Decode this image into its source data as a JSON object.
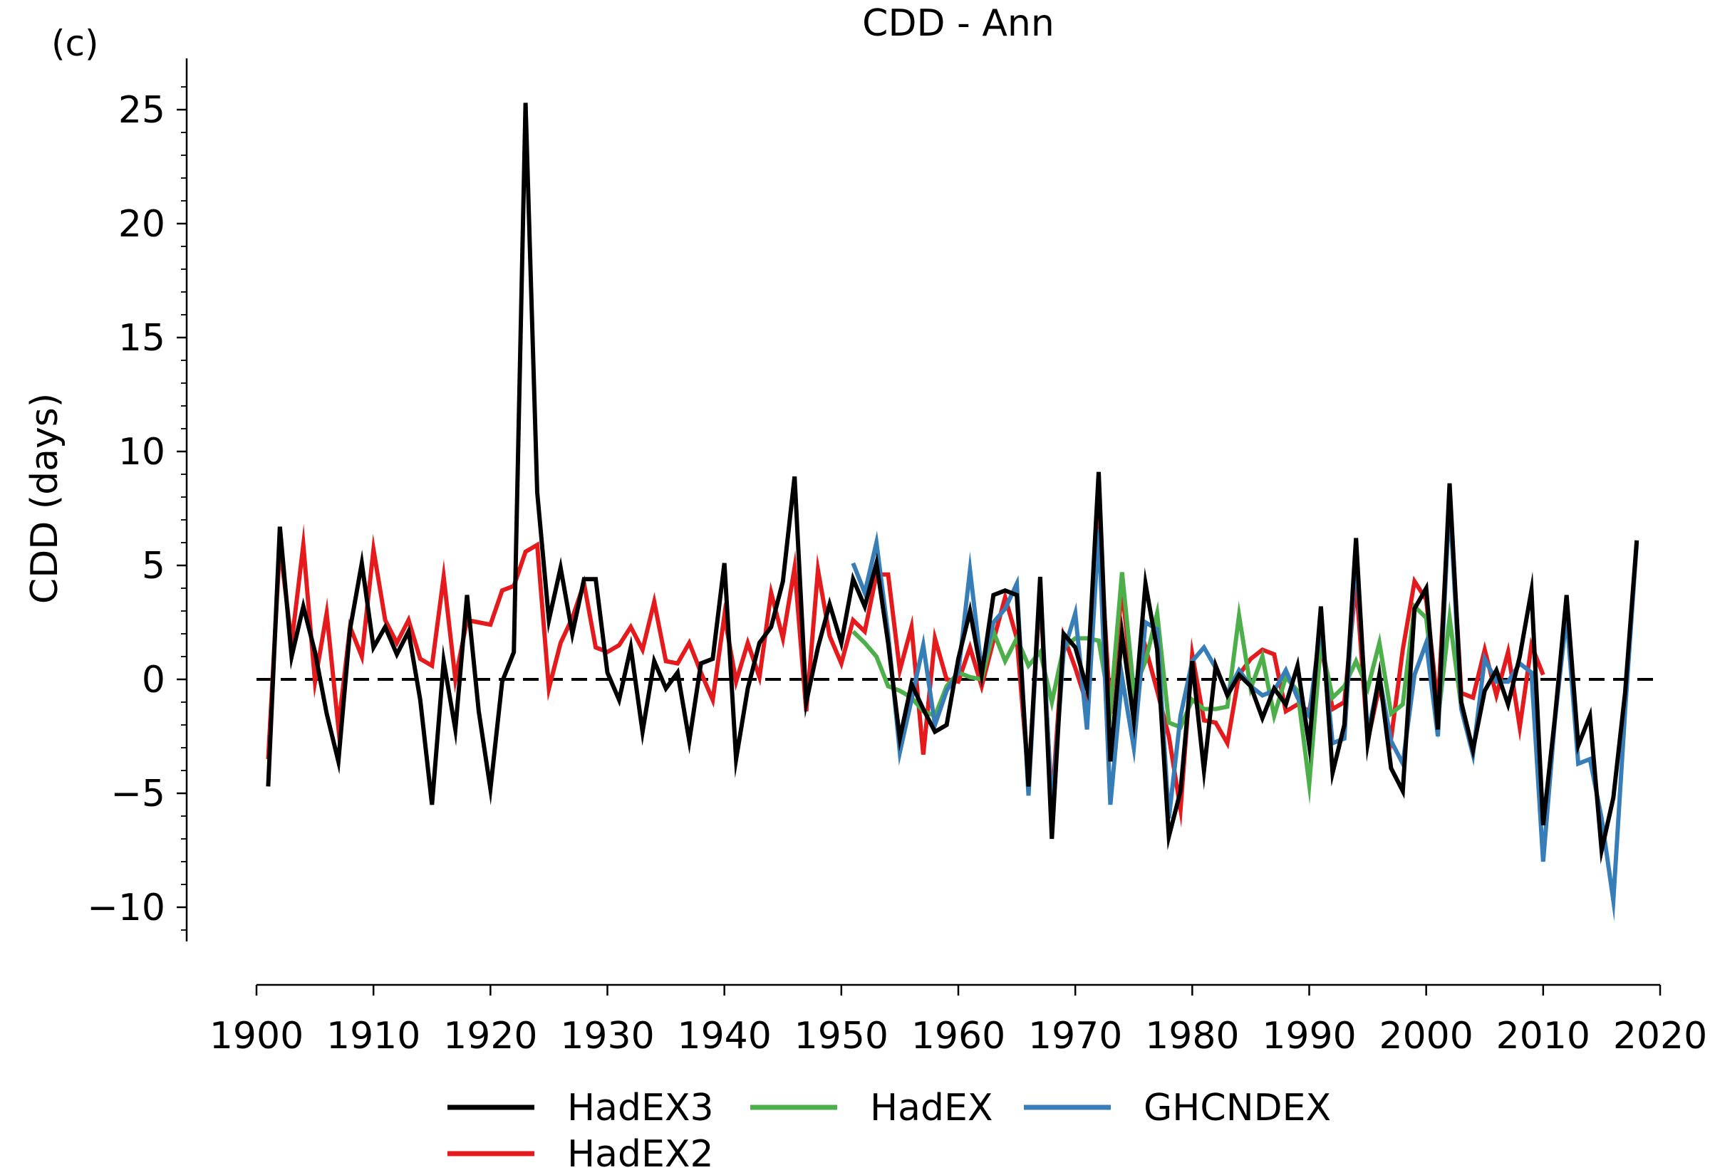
{
  "panel_label": "(c)",
  "chart_data": {
    "type": "line",
    "title": "CDD - Ann",
    "xlabel": "",
    "ylabel": "CDD (days)",
    "xlim": [
      1900,
      2020
    ],
    "ylim": [
      -11.5,
      27
    ],
    "x_ticks": [
      1900,
      1910,
      1920,
      1930,
      1940,
      1950,
      1960,
      1970,
      1980,
      1990,
      2000,
      2010,
      2020
    ],
    "y_ticks": [
      -10,
      -5,
      0,
      5,
      10,
      15,
      20,
      25
    ],
    "y_tick_labels": [
      "−10",
      "−5",
      "0",
      "5",
      "10",
      "15",
      "20",
      "25"
    ],
    "reference_line": {
      "y": 0,
      "style": "dashed",
      "color": "#000000"
    },
    "legend": {
      "placement": "bottom-center",
      "columns": 3
    },
    "series": [
      {
        "name": "HadEX2",
        "color": "#e41a1c",
        "x": [
          1901,
          1902,
          1903,
          1904,
          1905,
          1906,
          1907,
          1908,
          1909,
          1910,
          1911,
          1912,
          1913,
          1914,
          1915,
          1916,
          1917,
          1918,
          1919,
          1920,
          1921,
          1922,
          1923,
          1924,
          1925,
          1926,
          1927,
          1928,
          1929,
          1930,
          1931,
          1932,
          1933,
          1934,
          1935,
          1936,
          1937,
          1938,
          1939,
          1940,
          1941,
          1942,
          1943,
          1944,
          1945,
          1946,
          1947,
          1948,
          1949,
          1950,
          1951,
          1952,
          1953,
          1954,
          1955,
          1956,
          1957,
          1958,
          1959,
          1960,
          1961,
          1962,
          1963,
          1964,
          1965,
          1966,
          1967,
          1968,
          1969,
          1970,
          1971,
          1972,
          1973,
          1974,
          1975,
          1976,
          1977,
          1978,
          1979,
          1980,
          1981,
          1982,
          1983,
          1984,
          1985,
          1986,
          1987,
          1988,
          1989,
          1990,
          1991,
          1992,
          1993,
          1994,
          1995,
          1996,
          1997,
          1998,
          1999,
          2000,
          2001,
          2002,
          2003,
          2004,
          2005,
          2006,
          2007,
          2008,
          2009,
          2010
        ],
        "y": [
          -3.5,
          5.9,
          1.6,
          5.9,
          -0.1,
          2.9,
          -2.1,
          2.3,
          1.0,
          5.7,
          2.6,
          1.6,
          2.6,
          0.9,
          0.6,
          4.5,
          0.0,
          2.6,
          2.5,
          2.4,
          3.9,
          4.1,
          5.6,
          5.9,
          -0.4,
          1.6,
          2.7,
          4.2,
          1.4,
          1.2,
          1.5,
          2.3,
          1.3,
          3.4,
          0.8,
          0.7,
          1.6,
          0.3,
          -0.9,
          2.8,
          -0.1,
          1.6,
          0.1,
          3.8,
          1.8,
          4.9,
          -1.4,
          4.8,
          1.9,
          0.7,
          2.6,
          2.1,
          4.6,
          4.6,
          0.4,
          2.3,
          -3.3,
          1.8,
          0.0,
          -0.1,
          1.4,
          -0.3,
          1.7,
          3.6,
          1.8,
          -4.4,
          3.8,
          -5.5,
          1.9,
          0.5,
          -1.1,
          7.2,
          -1.5,
          4.0,
          -1.0,
          1.4,
          -0.5,
          -2.5,
          -5.7,
          1.1,
          -1.8,
          -1.9,
          -2.8,
          0.2,
          0.9,
          1.3,
          1.1,
          -1.4,
          -1.1,
          -1.4,
          1.5,
          -1.3,
          -1.0,
          4.3,
          -2.7,
          -0.3,
          -2.6,
          1.3,
          4.3,
          3.5,
          -1.2,
          8.1,
          -0.6,
          -0.8,
          1.3,
          -0.7,
          1.2,
          -2.1,
          1.5,
          0.2
        ]
      },
      {
        "name": "HadEX",
        "color": "#4daf4a",
        "x": [
          1951,
          1952,
          1953,
          1954,
          1955,
          1956,
          1957,
          1958,
          1959,
          1960,
          1961,
          1962,
          1963,
          1964,
          1965,
          1966,
          1967,
          1968,
          1969,
          1970,
          1971,
          1972,
          1973,
          1974,
          1975,
          1976,
          1977,
          1978,
          1979,
          1980,
          1981,
          1982,
          1983,
          1984,
          1985,
          1986,
          1987,
          1988,
          1989,
          1990,
          1991,
          1992,
          1993,
          1994,
          1995,
          1996,
          1997,
          1998,
          1999,
          2000,
          2001,
          2002,
          2003
        ],
        "y": [
          2.1,
          1.6,
          1.0,
          -0.3,
          -0.5,
          -0.8,
          -1.4,
          -1.6,
          -0.3,
          0.3,
          0.1,
          0.0,
          2.1,
          0.8,
          1.8,
          0.6,
          1.2,
          -1.0,
          1.4,
          1.8,
          1.8,
          1.7,
          -1.3,
          4.7,
          -0.5,
          0.8,
          2.9,
          -1.9,
          -2.1,
          -0.9,
          -1.3,
          -1.3,
          -1.2,
          2.8,
          -0.4,
          1.0,
          -1.6,
          0.1,
          -0.5,
          -4.6,
          1.6,
          -0.8,
          -0.3,
          0.8,
          -0.4,
          1.6,
          -1.5,
          -1.1,
          3.2,
          2.7,
          -1.8,
          2.7,
          -1.2
        ]
      },
      {
        "name": "GHCNDEX",
        "color": "#377eb8",
        "x": [
          1951,
          1952,
          1953,
          1954,
          1955,
          1956,
          1957,
          1958,
          1959,
          1960,
          1961,
          1962,
          1963,
          1964,
          1965,
          1966,
          1967,
          1968,
          1969,
          1970,
          1971,
          1972,
          1973,
          1974,
          1975,
          1976,
          1977,
          1978,
          1979,
          1980,
          1981,
          1982,
          1983,
          1984,
          1985,
          1986,
          1987,
          1988,
          1989,
          1990,
          1991,
          1992,
          1993,
          1994,
          1995,
          1996,
          1997,
          1998,
          1999,
          2000,
          2001,
          2002,
          2003,
          2004,
          2005,
          2006,
          2007,
          2008,
          2009,
          2010,
          2011,
          2012,
          2013,
          2014,
          2015,
          2016,
          2017,
          2018
        ],
        "y": [
          5.1,
          3.8,
          6.0,
          2.0,
          -3.2,
          -0.9,
          1.5,
          -2.0,
          -0.5,
          0.3,
          4.8,
          0.4,
          2.5,
          3.1,
          4.2,
          -5.1,
          4.3,
          -5.8,
          1.2,
          2.9,
          -2.2,
          6.6,
          -5.5,
          0.1,
          -3.0,
          2.5,
          2.2,
          -6.1,
          -1.6,
          0.8,
          1.4,
          0.5,
          -0.6,
          0.4,
          -0.3,
          -0.7,
          -0.5,
          0.4,
          -0.8,
          -1.6,
          2.4,
          -2.8,
          -2.6,
          5.6,
          -2.4,
          0.1,
          -2.7,
          -3.7,
          0.2,
          1.6,
          -2.5,
          7.9,
          -1.3,
          -3.3,
          0.9,
          -0.1,
          -0.1,
          0.7,
          0.3,
          -8.0,
          -1.8,
          2.8,
          -3.7,
          -3.5,
          -6.1,
          -9.7,
          -1.4,
          6.0
        ]
      },
      {
        "name": "HadEX3",
        "color": "#000000",
        "x": [
          1901,
          1902,
          1903,
          1904,
          1905,
          1906,
          1907,
          1908,
          1909,
          1910,
          1911,
          1912,
          1913,
          1914,
          1915,
          1916,
          1917,
          1918,
          1919,
          1920,
          1921,
          1922,
          1923,
          1924,
          1925,
          1926,
          1927,
          1928,
          1929,
          1930,
          1931,
          1932,
          1933,
          1934,
          1935,
          1936,
          1937,
          1938,
          1939,
          1940,
          1941,
          1942,
          1943,
          1944,
          1945,
          1946,
          1947,
          1948,
          1949,
          1950,
          1951,
          1952,
          1953,
          1954,
          1955,
          1956,
          1957,
          1958,
          1959,
          1960,
          1961,
          1962,
          1963,
          1964,
          1965,
          1966,
          1967,
          1968,
          1969,
          1970,
          1971,
          1972,
          1973,
          1974,
          1975,
          1976,
          1977,
          1978,
          1979,
          1980,
          1981,
          1982,
          1983,
          1984,
          1985,
          1986,
          1987,
          1988,
          1989,
          1990,
          1991,
          1992,
          1993,
          1994,
          1995,
          1996,
          1997,
          1998,
          1999,
          2000,
          2001,
          2002,
          2003,
          2004,
          2005,
          2006,
          2007,
          2008,
          2009,
          2010,
          2011,
          2012,
          2013,
          2014,
          2015,
          2016,
          2017,
          2018
        ],
        "y": [
          -4.7,
          6.7,
          1.0,
          3.2,
          1.2,
          -1.5,
          -3.6,
          2.2,
          5.1,
          1.4,
          2.3,
          1.1,
          2.1,
          -0.9,
          -5.5,
          0.8,
          -2.2,
          3.7,
          -1.4,
          -4.8,
          -0.1,
          1.2,
          25.3,
          8.2,
          2.6,
          4.9,
          2.0,
          4.4,
          4.4,
          0.3,
          -0.9,
          1.4,
          -2.3,
          0.8,
          -0.4,
          0.3,
          -2.7,
          0.7,
          0.9,
          5.1,
          -3.5,
          -0.4,
          1.6,
          2.3,
          4.3,
          8.9,
          -1.0,
          1.4,
          3.3,
          1.6,
          4.4,
          3.2,
          5.1,
          1.6,
          -2.6,
          -0.2,
          -1.3,
          -2.3,
          -2.0,
          0.9,
          3.0,
          0.2,
          3.7,
          3.9,
          3.7,
          -4.7,
          4.5,
          -7.0,
          2.0,
          1.4,
          -0.4,
          9.1,
          -3.6,
          2.0,
          -1.8,
          4.2,
          1.3,
          -6.9,
          -4.9,
          0.8,
          -4.0,
          0.6,
          -0.7,
          0.2,
          -0.3,
          -1.7,
          -0.4,
          -1.1,
          0.6,
          -2.9,
          3.2,
          -4.1,
          -2.0,
          6.2,
          -2.8,
          0.2,
          -3.9,
          -4.9,
          3.1,
          4.0,
          -2.2,
          8.6,
          -1.0,
          -3.1,
          -0.5,
          0.4,
          -1.1,
          1.0,
          3.9,
          -6.4,
          -1.7,
          3.7,
          -2.9,
          -1.6,
          -7.5,
          -5.2,
          -0.6,
          6.1
        ]
      }
    ]
  }
}
